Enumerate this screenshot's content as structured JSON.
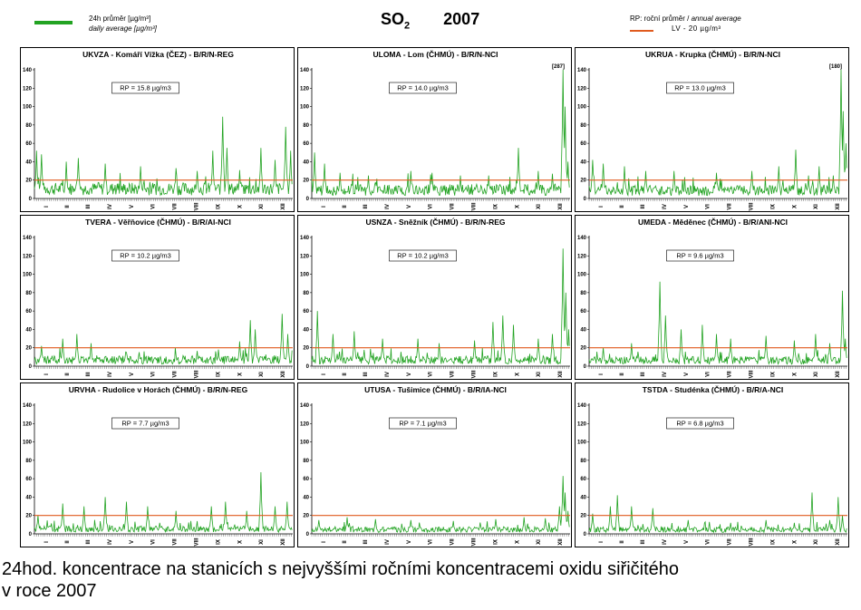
{
  "header": {
    "legend_left": {
      "line1": "24h průměr [µg/m³]",
      "line2": "daily average [µg/m³]",
      "color": "#22a322"
    },
    "title_main": "SO",
    "title_sub": "2",
    "title_year": "2007",
    "legend_right": {
      "line1_a": "RP: roční průměr / ",
      "line1_b": "annual average",
      "line2": "LV  - 20 µg/m³",
      "color": "#e05a1e"
    }
  },
  "caption": {
    "line1": "24hod. koncentrace na stanicích s nejvyššími ročními koncentracemi oxidu siřičitého",
    "line2": "v roce 2007"
  },
  "colors": {
    "series": "#22a322",
    "limit": "#e05a1e"
  },
  "chart_data": [
    {
      "type": "line",
      "title": "UKVZA - Komáří Vížka (ČEZ) - B/R/N-REG",
      "rp_label": "RP = 15.8 µg/m3",
      "annotation": "",
      "ylim": [
        0,
        140
      ],
      "yticks": [
        0,
        20,
        40,
        60,
        80,
        100,
        120,
        140
      ],
      "months": [
        "I",
        "II",
        "III",
        "IV",
        "V",
        "VI",
        "VII",
        "VIII",
        "IX",
        "X",
        "XI",
        "XII"
      ],
      "limit": 20,
      "annual_average": 15.8,
      "peaks": [
        [
          3,
          52
        ],
        [
          10,
          48
        ],
        [
          45,
          40
        ],
        [
          62,
          44
        ],
        [
          100,
          38
        ],
        [
          150,
          35
        ],
        [
          200,
          33
        ],
        [
          230,
          30
        ],
        [
          252,
          52
        ],
        [
          266,
          89
        ],
        [
          272,
          55
        ],
        [
          290,
          30
        ],
        [
          320,
          55
        ],
        [
          340,
          42
        ],
        [
          355,
          78
        ],
        [
          362,
          52
        ]
      ]
    },
    {
      "type": "line",
      "title": "ULOMA - Lom (ČHMÚ) - B/R/N-NCI",
      "rp_label": "RP = 14.0 µg/m3",
      "annotation": "[287]",
      "ylim": [
        0,
        140
      ],
      "yticks": [
        0,
        20,
        40,
        60,
        80,
        100,
        120,
        140
      ],
      "months": [
        "I",
        "II",
        "III",
        "IV",
        "V",
        "VI",
        "VII",
        "VIII",
        "IX",
        "X",
        "XI",
        "XII"
      ],
      "limit": 20,
      "annual_average": 14.0,
      "peaks": [
        [
          4,
          50
        ],
        [
          18,
          38
        ],
        [
          40,
          28
        ],
        [
          80,
          25
        ],
        [
          140,
          30
        ],
        [
          170,
          28
        ],
        [
          210,
          25
        ],
        [
          250,
          25
        ],
        [
          292,
          55
        ],
        [
          320,
          30
        ],
        [
          340,
          27
        ],
        [
          355,
          140
        ],
        [
          358,
          100
        ],
        [
          362,
          40
        ]
      ]
    },
    {
      "type": "line",
      "title": "UKRUA - Krupka (ČHMÚ) - B/R/N-NCI",
      "rp_label": "RP = 13.0 µg/m3",
      "annotation": "[180]",
      "ylim": [
        0,
        140
      ],
      "yticks": [
        0,
        20,
        40,
        60,
        80,
        100,
        120,
        140
      ],
      "months": [
        "I",
        "II",
        "III",
        "IV",
        "V",
        "VI",
        "VII",
        "VIII",
        "IX",
        "X",
        "XI",
        "XII"
      ],
      "limit": 20,
      "annual_average": 13.0,
      "peaks": [
        [
          5,
          42
        ],
        [
          20,
          38
        ],
        [
          50,
          35
        ],
        [
          80,
          30
        ],
        [
          120,
          30
        ],
        [
          180,
          28
        ],
        [
          230,
          30
        ],
        [
          268,
          35
        ],
        [
          292,
          53
        ],
        [
          310,
          25
        ],
        [
          325,
          35
        ],
        [
          345,
          25
        ],
        [
          356,
          140
        ],
        [
          359,
          95
        ],
        [
          363,
          60
        ]
      ]
    },
    {
      "type": "line",
      "title": "TVERA -  Věřňovice (ČHMÚ) - B/R/AI-NCI",
      "rp_label": "RP = 10.2 µg/m3",
      "annotation": "",
      "ylim": [
        0,
        140
      ],
      "yticks": [
        0,
        20,
        40,
        60,
        80,
        100,
        120,
        140
      ],
      "months": [
        "I",
        "II",
        "III",
        "IV",
        "V",
        "VI",
        "VII",
        "VIII",
        "IX",
        "X",
        "XI",
        "XII"
      ],
      "limit": 20,
      "annual_average": 10.2,
      "peaks": [
        [
          10,
          22
        ],
        [
          40,
          30
        ],
        [
          60,
          35
        ],
        [
          80,
          25
        ],
        [
          130,
          15
        ],
        [
          200,
          12
        ],
        [
          260,
          18
        ],
        [
          290,
          27
        ],
        [
          305,
          50
        ],
        [
          312,
          40
        ],
        [
          350,
          57
        ],
        [
          358,
          35
        ]
      ]
    },
    {
      "type": "line",
      "title": "USNZA - Sněžník (ČHMÚ) - B/R/N-REG",
      "rp_label": "RP = 10.2 µg/m3",
      "annotation": "",
      "ylim": [
        0,
        140
      ],
      "yticks": [
        0,
        20,
        40,
        60,
        80,
        100,
        120,
        140
      ],
      "months": [
        "I",
        "II",
        "III",
        "IV",
        "V",
        "VI",
        "VII",
        "VIII",
        "IX",
        "X",
        "XI",
        "XII"
      ],
      "limit": 20,
      "annual_average": 10.2,
      "peaks": [
        [
          8,
          60
        ],
        [
          30,
          35
        ],
        [
          60,
          38
        ],
        [
          100,
          30
        ],
        [
          150,
          30
        ],
        [
          180,
          25
        ],
        [
          230,
          28
        ],
        [
          256,
          48
        ],
        [
          270,
          55
        ],
        [
          285,
          45
        ],
        [
          320,
          30
        ],
        [
          340,
          35
        ],
        [
          355,
          128
        ],
        [
          359,
          80
        ],
        [
          363,
          40
        ]
      ]
    },
    {
      "type": "line",
      "title": "UMEDA - Měděnec (ČHMÚ) - B/R/ANI-NCI",
      "rp_label": "RP = 9.6 µg/m3",
      "annotation": "",
      "ylim": [
        0,
        140
      ],
      "yticks": [
        0,
        20,
        40,
        60,
        80,
        100,
        120,
        140
      ],
      "months": [
        "I",
        "II",
        "III",
        "IV",
        "V",
        "VI",
        "VII",
        "VIII",
        "IX",
        "X",
        "XI",
        "XII"
      ],
      "limit": 20,
      "annual_average": 9.6,
      "peaks": [
        [
          20,
          20
        ],
        [
          60,
          25
        ],
        [
          100,
          92
        ],
        [
          108,
          55
        ],
        [
          130,
          40
        ],
        [
          160,
          45
        ],
        [
          180,
          35
        ],
        [
          200,
          30
        ],
        [
          250,
          33
        ],
        [
          290,
          28
        ],
        [
          320,
          35
        ],
        [
          340,
          25
        ],
        [
          358,
          82
        ],
        [
          362,
          30
        ]
      ]
    },
    {
      "type": "line",
      "title": "URVHA - Rudolice v Horách (ČHMÚ) - B/R/N-REG",
      "rp_label": "RP = 7.7 µg/m3",
      "annotation": "",
      "ylim": [
        0,
        140
      ],
      "yticks": [
        0,
        20,
        40,
        60,
        80,
        100,
        120,
        140
      ],
      "months": [
        "I",
        "II",
        "III",
        "IV",
        "V",
        "VI",
        "VII",
        "VIII",
        "IX",
        "X",
        "XI",
        "XII"
      ],
      "limit": 20,
      "annual_average": 7.7,
      "peaks": [
        [
          5,
          20
        ],
        [
          40,
          33
        ],
        [
          70,
          30
        ],
        [
          100,
          40
        ],
        [
          130,
          35
        ],
        [
          160,
          30
        ],
        [
          200,
          25
        ],
        [
          250,
          30
        ],
        [
          270,
          35
        ],
        [
          300,
          25
        ],
        [
          320,
          67
        ],
        [
          340,
          30
        ],
        [
          357,
          35
        ]
      ]
    },
    {
      "type": "line",
      "title": "UTUSA - Tušimice (ČHMÚ) - B/R/IA-NCI",
      "rp_label": "RP = 7.1 µg/m3",
      "annotation": "",
      "ylim": [
        0,
        140
      ],
      "yticks": [
        0,
        20,
        40,
        60,
        80,
        100,
        120,
        140
      ],
      "months": [
        "I",
        "II",
        "III",
        "IV",
        "V",
        "VI",
        "VII",
        "VIII",
        "IX",
        "X",
        "XI",
        "XII"
      ],
      "limit": 20,
      "annual_average": 7.1,
      "peaks": [
        [
          10,
          15
        ],
        [
          50,
          18
        ],
        [
          90,
          16
        ],
        [
          140,
          15
        ],
        [
          200,
          14
        ],
        [
          260,
          16
        ],
        [
          300,
          18
        ],
        [
          330,
          17
        ],
        [
          350,
          30
        ],
        [
          355,
          63
        ],
        [
          358,
          45
        ],
        [
          362,
          25
        ]
      ]
    },
    {
      "type": "line",
      "title": "TSTDA - Studénka (ČHMÚ) - B/R/A-NCI",
      "rp_label": "RP = 6.8 µg/m3",
      "annotation": "",
      "ylim": [
        0,
        140
      ],
      "yticks": [
        0,
        20,
        40,
        60,
        80,
        100,
        120,
        140
      ],
      "months": [
        "I",
        "II",
        "III",
        "IV",
        "V",
        "VI",
        "VII",
        "VIII",
        "IX",
        "X",
        "XI",
        "XII"
      ],
      "limit": 20,
      "annual_average": 6.8,
      "peaks": [
        [
          5,
          22
        ],
        [
          30,
          30
        ],
        [
          40,
          42
        ],
        [
          60,
          30
        ],
        [
          90,
          28
        ],
        [
          140,
          15
        ],
        [
          200,
          12
        ],
        [
          250,
          15
        ],
        [
          290,
          12
        ],
        [
          315,
          45
        ],
        [
          340,
          15
        ],
        [
          352,
          40
        ],
        [
          358,
          20
        ]
      ]
    }
  ]
}
